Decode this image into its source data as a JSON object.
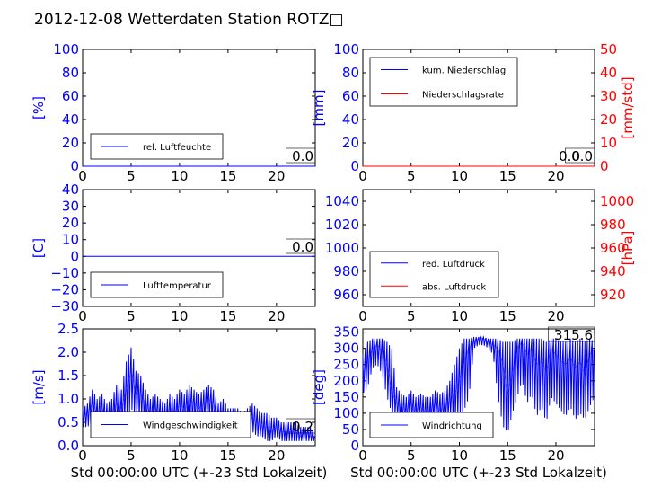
{
  "title": "2012-12-08 Wetterdaten Station ROTZ□",
  "colors": {
    "blue": "#0000ff",
    "red": "#ff0000",
    "black": "#000000"
  },
  "chart_data": [
    {
      "type": "line",
      "ylabel": "[%]",
      "xlim": [
        0,
        24
      ],
      "ylim": [
        0,
        100
      ],
      "xticks": [
        0,
        5,
        10,
        15,
        20
      ],
      "yticks": [
        0,
        20,
        40,
        60,
        80,
        100
      ],
      "legend": {
        "placement": "lower-left",
        "entries": [
          {
            "name": "rel. Luftfeuchte",
            "color": "#0000ff"
          }
        ]
      },
      "series": [
        {
          "name": "rel. Luftfeuchte",
          "color": "#0000ff",
          "x": [
            0,
            24
          ],
          "y": [
            0,
            0
          ]
        }
      ],
      "annotation": "0.0"
    },
    {
      "type": "line",
      "ylabel": "[mm]",
      "y2label": "[mm/std]",
      "xlim": [
        0,
        24
      ],
      "ylim": [
        0,
        100
      ],
      "y2lim": [
        0,
        50
      ],
      "xticks": [
        0,
        5,
        10,
        15,
        20
      ],
      "yticks": [
        0,
        20,
        40,
        60,
        80,
        100
      ],
      "y2ticks": [
        0,
        10,
        20,
        30,
        40,
        50
      ],
      "legend": {
        "placement": "top-left",
        "entries": [
          {
            "name": "kum. Niederschlag",
            "color": "#0000ff"
          },
          {
            "name": "Niederschlagsrate",
            "color": "#ff0000"
          }
        ]
      },
      "series": [
        {
          "name": "kum. Niederschlag",
          "color": "#0000ff",
          "x": [
            0,
            24
          ],
          "y": [
            0,
            0
          ]
        },
        {
          "name": "Niederschlagsrate",
          "color": "#ff0000",
          "axis": "right",
          "x": [
            0,
            24
          ],
          "y": [
            0,
            0
          ]
        }
      ],
      "annotation": "0.0",
      "annotation2": "0.0"
    },
    {
      "type": "line",
      "ylabel": "[C]",
      "xlim": [
        0,
        24
      ],
      "ylim": [
        -30,
        40
      ],
      "xticks": [
        0,
        5,
        10,
        15,
        20
      ],
      "yticks": [
        -30,
        -20,
        -10,
        0,
        10,
        20,
        30,
        40
      ],
      "legend": {
        "placement": "lower-left",
        "entries": [
          {
            "name": "Lufttemperatur",
            "color": "#0000ff"
          }
        ]
      },
      "series": [
        {
          "name": "Lufttemperatur",
          "color": "#0000ff",
          "x": [
            0,
            24
          ],
          "y": [
            0,
            0
          ]
        }
      ],
      "annotation": "0.0"
    },
    {
      "type": "line",
      "y2label": "[hPa]",
      "xlim": [
        0,
        24
      ],
      "ylim": [
        950,
        1050
      ],
      "y2lim": [
        910,
        1010
      ],
      "xticks": [
        0,
        5,
        10,
        15,
        20
      ],
      "yticks": [
        960,
        980,
        1000,
        1020,
        1040
      ],
      "y2ticks": [
        920,
        940,
        960,
        980,
        1000
      ],
      "legend": {
        "placement": "lower-left",
        "entries": [
          {
            "name": "red. Luftdruck",
            "color": "#0000ff"
          },
          {
            "name": "abs. Luftdruck",
            "color": "#ff0000"
          }
        ]
      },
      "series": []
    },
    {
      "type": "line",
      "ylabel": "[m/s]",
      "xlabel": "Std 00:00:00 UTC (+-23 Std Lokalzeit)",
      "xlim": [
        0,
        24
      ],
      "ylim": [
        0,
        2.5
      ],
      "xticks": [
        0,
        5,
        10,
        15,
        20
      ],
      "yticks": [
        0.0,
        0.5,
        1.0,
        1.5,
        2.0,
        2.5
      ],
      "legend": {
        "placement": "lower-center",
        "entries": [
          {
            "name": "Windgeschwindigkeit",
            "color": "#0000ff"
          }
        ]
      },
      "series": [
        {
          "name": "Windgeschwindigkeit",
          "color": "#0000ff",
          "x": [
            0,
            0.5,
            1,
            1.5,
            2,
            2.5,
            3,
            3.5,
            4,
            4.5,
            5,
            5.5,
            6,
            6.5,
            7,
            7.5,
            8,
            8.5,
            9,
            9.5,
            10,
            10.5,
            11,
            11.5,
            12,
            12.5,
            13,
            13.5,
            14,
            14.5,
            15,
            15.5,
            16,
            16.5,
            17,
            17.5,
            18,
            18.5,
            19,
            19.5,
            20,
            20.5,
            21,
            21.5,
            22,
            22.5,
            23,
            23.5,
            24
          ],
          "y": [
            0.6,
            0.7,
            0.9,
            0.7,
            0.8,
            0.6,
            0.7,
            0.9,
            0.8,
            1.2,
            1.6,
            1.1,
            1.1,
            0.9,
            0.7,
            0.8,
            0.7,
            0.6,
            0.8,
            0.7,
            0.9,
            0.8,
            1.0,
            0.9,
            0.8,
            0.9,
            1.0,
            0.9,
            0.6,
            0.7,
            0.6,
            0.5,
            0.5,
            0.4,
            0.5,
            0.6,
            0.5,
            0.4,
            0.4,
            0.3,
            0.4,
            0.3,
            0.3,
            0.3,
            0.3,
            0.2,
            0.3,
            0.2,
            0.2
          ],
          "ymax": [
            0.8,
            0.9,
            1.2,
            1.0,
            1.1,
            0.9,
            1.0,
            1.3,
            1.2,
            1.8,
            2.1,
            1.6,
            1.5,
            1.2,
            1.0,
            1.1,
            1.0,
            0.9,
            1.1,
            1.0,
            1.2,
            1.1,
            1.3,
            1.2,
            1.1,
            1.2,
            1.3,
            1.2,
            0.9,
            1.0,
            0.8,
            0.8,
            0.8,
            0.7,
            0.8,
            0.9,
            0.8,
            0.7,
            0.7,
            0.6,
            0.6,
            0.5,
            0.5,
            0.5,
            0.5,
            0.4,
            0.4,
            0.4,
            0.3
          ],
          "ymin": [
            0.4,
            0.4,
            0.5,
            0.4,
            0.4,
            0.3,
            0.4,
            0.5,
            0.4,
            0.6,
            0.8,
            0.6,
            0.6,
            0.5,
            0.4,
            0.4,
            0.4,
            0.3,
            0.4,
            0.4,
            0.5,
            0.4,
            0.5,
            0.5,
            0.4,
            0.5,
            0.6,
            0.5,
            0.3,
            0.4,
            0.3,
            0.2,
            0.2,
            0.2,
            0.2,
            0.3,
            0.2,
            0.2,
            0.1,
            0.1,
            0.2,
            0.1,
            0.1,
            0.1,
            0.1,
            0.1,
            0.1,
            0.1,
            0.1
          ]
        }
      ],
      "annotation": "0.2"
    },
    {
      "type": "line",
      "ylabel": "[deg]",
      "xlabel": "Std 00:00:00 UTC (+-23 Std Lokalzeit)",
      "xlim": [
        0,
        24
      ],
      "ylim": [
        0,
        360
      ],
      "xticks": [
        0,
        5,
        10,
        15,
        20
      ],
      "yticks": [
        0,
        50,
        100,
        150,
        200,
        250,
        300,
        350
      ],
      "legend": {
        "placement": "lower-left",
        "entries": [
          {
            "name": "Windrichtung",
            "color": "#0000ff"
          }
        ]
      },
      "series": [
        {
          "name": "Windrichtung",
          "color": "#0000ff",
          "x": [
            0,
            0.5,
            1,
            1.5,
            2,
            2.5,
            3,
            3.5,
            4,
            4.5,
            5,
            5.5,
            6,
            6.5,
            7,
            7.5,
            8,
            8.5,
            9,
            9.5,
            10,
            10.5,
            11,
            11.5,
            12,
            12.5,
            13,
            13.5,
            14,
            14.5,
            15,
            15.5,
            16,
            16.5,
            17,
            17.5,
            18,
            18.5,
            19,
            19.5,
            20,
            20.5,
            21,
            21.5,
            22,
            22.5,
            23,
            23.5,
            24
          ],
          "y": [
            220,
            260,
            300,
            310,
            290,
            250,
            170,
            130,
            120,
            110,
            130,
            110,
            120,
            100,
            110,
            130,
            110,
            120,
            140,
            160,
            200,
            260,
            300,
            320,
            330,
            330,
            320,
            310,
            300,
            250,
            160,
            220,
            300,
            320,
            280,
            300,
            250,
            260,
            230,
            300,
            280,
            260,
            250,
            270,
            240,
            260,
            220,
            280,
            300
          ],
          "ymax": [
            280,
            320,
            330,
            330,
            330,
            320,
            300,
            180,
            160,
            150,
            170,
            150,
            160,
            150,
            150,
            170,
            160,
            170,
            200,
            250,
            300,
            330,
            330,
            335,
            335,
            335,
            330,
            330,
            330,
            320,
            320,
            320,
            330,
            330,
            330,
            330,
            330,
            330,
            320,
            330,
            330,
            320,
            320,
            330,
            320,
            330,
            320,
            330,
            320
          ],
          "ymin": [
            160,
            180,
            240,
            250,
            220,
            150,
            100,
            90,
            80,
            70,
            80,
            70,
            80,
            60,
            70,
            80,
            70,
            80,
            90,
            80,
            90,
            110,
            150,
            300,
            310,
            310,
            300,
            280,
            150,
            60,
            40,
            100,
            150,
            200,
            130,
            160,
            90,
            120,
            70,
            150,
            130,
            110,
            90,
            120,
            80,
            100,
            80,
            120,
            150
          ]
        }
      ],
      "annotation": "315.6"
    }
  ]
}
